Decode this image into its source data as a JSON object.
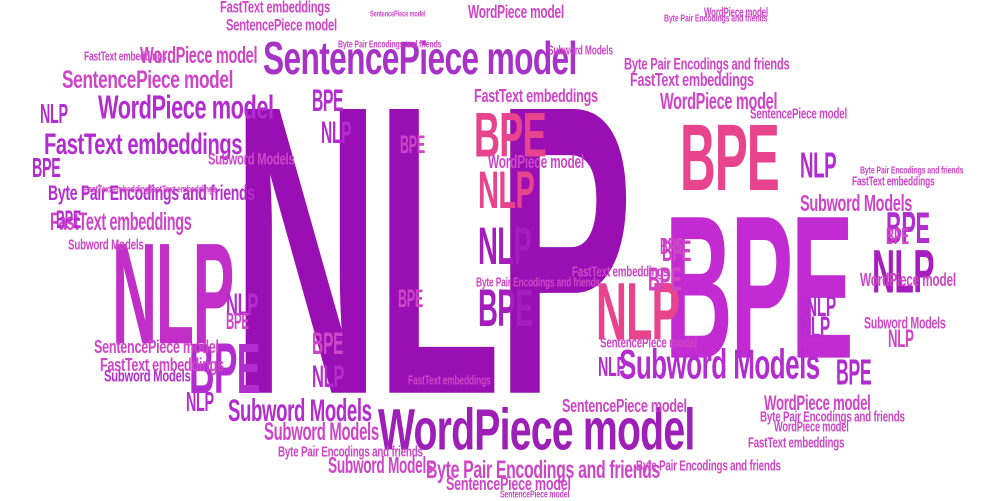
{
  "colors": {
    "purple_dark": "#9a0fb3",
    "purple": "#b22ccf",
    "magenta": "#c43fd0",
    "orchid": "#cf45c8",
    "pink": "#e8448e",
    "pink_light": "#ee5a9a"
  },
  "words": [
    {
      "text": "NLP",
      "color": "#9a0fb3"
    },
    {
      "text": "BPE",
      "color": "#c22bd1"
    },
    {
      "text": "SentencePiece model",
      "color": "#a832c8"
    },
    {
      "text": "WordPiece model",
      "color": "#9d1fb8"
    },
    {
      "text": "NLP",
      "color": "#c12ec8"
    },
    {
      "text": "BPE",
      "color": "#e8448e"
    },
    {
      "text": "NLP",
      "color": "#e8448e"
    },
    {
      "text": "BPE",
      "color": "#e8448e"
    },
    {
      "text": "NLP",
      "color": "#a61dbd"
    },
    {
      "text": "NLP",
      "color": "#e8448e"
    },
    {
      "text": "BPE",
      "color": "#a61dbd"
    },
    {
      "text": "BPE",
      "color": "#b22ccf"
    },
    {
      "text": "BPE",
      "color": "#b22ccf"
    },
    {
      "text": "NLP",
      "color": "#a61dbd"
    },
    {
      "text": "Subword Models",
      "color": "#b22ccf"
    },
    {
      "text": "WordPiece model",
      "color": "#b22ccf"
    },
    {
      "text": "FastText embeddings",
      "color": "#b22ccf"
    },
    {
      "text": "SentencePiece model",
      "color": "#cf45c8"
    },
    {
      "text": "NLP",
      "color": "#b22ccf"
    },
    {
      "text": "WordPiece model",
      "color": "#cf45c8"
    },
    {
      "text": "BPE",
      "color": "#b22ccf"
    },
    {
      "text": "FastText embeddings",
      "color": "#cf45c8"
    },
    {
      "text": "Byte Pair Encodings and friends",
      "color": "#b22ccf"
    },
    {
      "text": "BPE",
      "color": "#b22ccf"
    },
    {
      "text": "BPE",
      "color": "#b22ccf"
    },
    {
      "text": "NLP",
      "color": "#b22ccf"
    },
    {
      "text": "BPE",
      "color": "#cf45c8"
    },
    {
      "text": "BPE",
      "color": "#cf45c8"
    },
    {
      "text": "NLP",
      "color": "#b22ccf"
    },
    {
      "text": "BPE",
      "color": "#cf45c8"
    },
    {
      "text": "BPE",
      "color": "#cf45c8"
    },
    {
      "text": "BPE",
      "color": "#cf45c8"
    },
    {
      "text": "NLP",
      "color": "#b22ccf"
    },
    {
      "text": "NLP",
      "color": "#b22ccf"
    },
    {
      "text": "NLP",
      "color": "#b22ccf"
    },
    {
      "text": "BPE",
      "color": "#b22ccf"
    },
    {
      "text": "NLP",
      "color": "#b22ccf"
    },
    {
      "text": "NLP",
      "color": "#b22ccf"
    },
    {
      "text": "NLP",
      "color": "#b22ccf"
    },
    {
      "text": "BPE",
      "color": "#cf45c8"
    },
    {
      "text": "BPE",
      "color": "#cf45c8"
    },
    {
      "text": "BPE",
      "color": "#cf45c8"
    },
    {
      "text": "NLP",
      "color": "#cf45c8"
    },
    {
      "text": "Subword Models",
      "color": "#b22ccf"
    },
    {
      "text": "Subword Models",
      "color": "#cf45c8"
    },
    {
      "text": "Subword Models",
      "color": "#cf45c8"
    },
    {
      "text": "Subword Models",
      "color": "#cf45c8"
    },
    {
      "text": "Subword Models",
      "color": "#cf45c8"
    },
    {
      "text": "Subword Models",
      "color": "#b22ccf"
    },
    {
      "text": "Subword Models",
      "color": "#cf45c8"
    },
    {
      "text": "Subword Models",
      "color": "#cf45c8"
    },
    {
      "text": "SentencePiece model",
      "color": "#cf45c8"
    },
    {
      "text": "SentencePiece model",
      "color": "#cf45c8"
    },
    {
      "text": "SentencePiece model",
      "color": "#cf45c8"
    },
    {
      "text": "SentencePiece model",
      "color": "#cf45c8"
    },
    {
      "text": "SentencePiece model",
      "color": "#cf45c8"
    },
    {
      "text": "SentencePiece model",
      "color": "#cf45c8"
    },
    {
      "text": "SentencePiece model",
      "color": "#cf45c8"
    },
    {
      "text": "SentencePiece model",
      "color": "#cf45c8"
    },
    {
      "text": "WordPiece model",
      "color": "#cf45c8"
    },
    {
      "text": "WordPiece model",
      "color": "#cf45c8"
    },
    {
      "text": "WordPiece model",
      "color": "#cf45c8"
    },
    {
      "text": "WordPiece model",
      "color": "#cf45c8"
    },
    {
      "text": "WordPiece model",
      "color": "#cf45c8"
    },
    {
      "text": "WordPiece model",
      "color": "#cf45c8"
    },
    {
      "text": "WordPiece model",
      "color": "#cf45c8"
    },
    {
      "text": "FastText embeddings",
      "color": "#cf45c8"
    },
    {
      "text": "FastText embeddings",
      "color": "#cf45c8"
    },
    {
      "text": "FastText embeddings",
      "color": "#cf45c8"
    },
    {
      "text": "FastText embeddings",
      "color": "#cf45c8"
    },
    {
      "text": "FastText embeddings",
      "color": "#cf45c8"
    },
    {
      "text": "FastText embeddings",
      "color": "#cf45c8"
    },
    {
      "text": "FastText embeddings",
      "color": "#cf45c8"
    },
    {
      "text": "FastText embeddings",
      "color": "#cf45c8"
    },
    {
      "text": "FastText embeddings",
      "color": "#cf45c8"
    },
    {
      "text": "FastText embeddings",
      "color": "#cf45c8"
    },
    {
      "text": "FastText embeddings",
      "color": "#cf45c8"
    },
    {
      "text": "Byte Pair Encodings and friends",
      "color": "#cf45c8"
    },
    {
      "text": "Byte Pair Encodings and friends",
      "color": "#cf45c8"
    },
    {
      "text": "Byte Pair Encodings and friends",
      "color": "#cf45c8"
    },
    {
      "text": "Byte Pair Encodings and friends",
      "color": "#cf45c8"
    },
    {
      "text": "Byte Pair Encodings and friends",
      "color": "#cf45c8"
    },
    {
      "text": "Byte Pair Encodings and friends",
      "color": "#cf45c8"
    },
    {
      "text": "Byte Pair Encodings and friends",
      "color": "#cf45c8"
    },
    {
      "text": "Byte Pair Encodings and friends",
      "color": "#cf45c8"
    },
    {
      "text": "Byte Pair Encodings and friends",
      "color": "#cf45c8"
    },
    {
      "text": "Subword Models",
      "color": "#cf45c8"
    }
  ]
}
